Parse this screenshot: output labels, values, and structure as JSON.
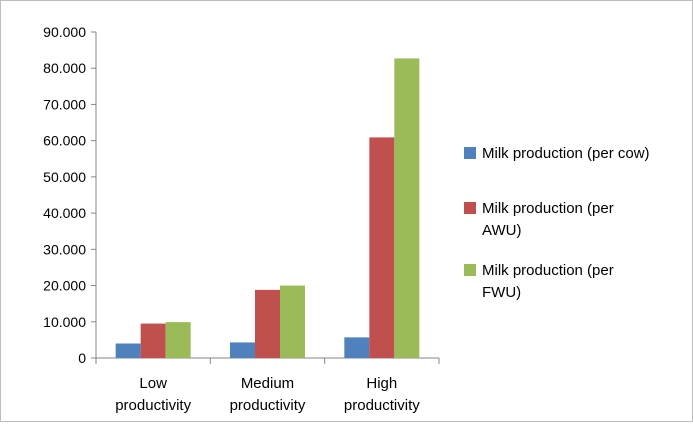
{
  "chart_data": {
    "type": "bar",
    "title": "",
    "xlabel": "",
    "ylabel": "",
    "categories": [
      [
        "Low",
        "productivity"
      ],
      [
        "Medium",
        "productivity"
      ],
      [
        "High",
        "productivity"
      ]
    ],
    "series": [
      {
        "name": "Milk production (per cow)",
        "legend_lines": [
          "Milk production (per cow)"
        ],
        "color": "#4f81bd",
        "values": [
          4000,
          4300,
          5700
        ]
      },
      {
        "name": "Milk production (per AWU)",
        "legend_lines": [
          "Milk production (per",
          "AWU)"
        ],
        "color": "#c0504d",
        "values": [
          9500,
          18800,
          60900
        ]
      },
      {
        "name": "Milk production (per FWU)",
        "legend_lines": [
          "Milk production (per",
          "FWU)"
        ],
        "color": "#9bbb59",
        "values": [
          9900,
          20000,
          82700
        ]
      }
    ],
    "ylim": [
      0,
      90000
    ],
    "yticks": [
      0,
      10000,
      20000,
      30000,
      40000,
      50000,
      60000,
      70000,
      80000,
      90000
    ],
    "ytick_labels": [
      "0",
      "10.000",
      "20.000",
      "30.000",
      "40.000",
      "50.000",
      "60.000",
      "70.000",
      "80.000",
      "90.000"
    ],
    "grid": false,
    "legend": "right"
  }
}
